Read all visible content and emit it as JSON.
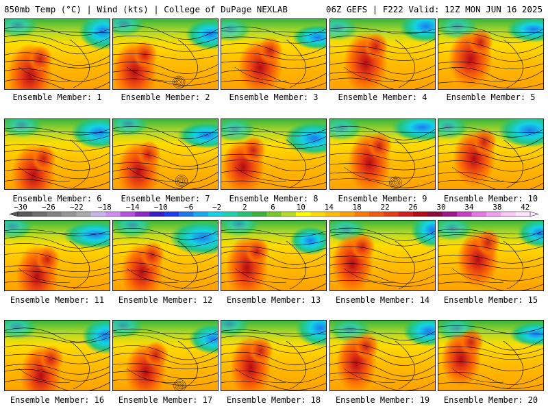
{
  "header": {
    "left": "850mb Temp (°C) | Wind (kts) | College of DuPage NEXLAB",
    "right": "06Z GEFS | F222 Valid: 12Z MON JUN 16 2025"
  },
  "panels": [
    {
      "label": "Ensemble Member: 1"
    },
    {
      "label": "Ensemble Member: 2"
    },
    {
      "label": "Ensemble Member: 3"
    },
    {
      "label": "Ensemble Member: 4"
    },
    {
      "label": "Ensemble Member: 5"
    },
    {
      "label": "Ensemble Member: 6"
    },
    {
      "label": "Ensemble Member: 7"
    },
    {
      "label": "Ensemble Member: 8"
    },
    {
      "label": "Ensemble Member: 9"
    },
    {
      "label": "Ensemble Member: 10"
    },
    {
      "label": "Ensemble Member: 11"
    },
    {
      "label": "Ensemble Member: 12"
    },
    {
      "label": "Ensemble Member: 13"
    },
    {
      "label": "Ensemble Member: 14"
    },
    {
      "label": "Ensemble Member: 15"
    },
    {
      "label": "Ensemble Member: 16"
    },
    {
      "label": "Ensemble Member: 17"
    },
    {
      "label": "Ensemble Member: 18"
    },
    {
      "label": "Ensemble Member: 19"
    },
    {
      "label": "Ensemble Member: 20"
    }
  ],
  "colorbar": {
    "ticks": [
      "−30",
      "−26",
      "−22",
      "−18",
      "−14",
      "−10",
      "−6",
      "−2",
      "2",
      "6",
      "10",
      "14",
      "18",
      "22",
      "26",
      "30",
      "34",
      "38",
      "42"
    ],
    "colors": [
      "#5a5a5a",
      "#6e6e6e",
      "#828282",
      "#969696",
      "#aaaaaa",
      "#c8b4e6",
      "#d28cf0",
      "#b450dc",
      "#8c28c8",
      "#3c1ec8",
      "#1e3cf0",
      "#1e78f0",
      "#14aaf0",
      "#14d2e6",
      "#1ed2b4",
      "#28c378",
      "#3cb43c",
      "#78c828",
      "#b4dc28",
      "#ffff00",
      "#ffdc00",
      "#ffbe00",
      "#ffa000",
      "#ff7800",
      "#f05a0a",
      "#e63c14",
      "#d21e1e",
      "#b40a14",
      "#8c0a3c",
      "#a0148c",
      "#c83cc8",
      "#e678e6",
      "#f0a0f0",
      "#fac8fa",
      "#ffe6ff"
    ]
  }
}
